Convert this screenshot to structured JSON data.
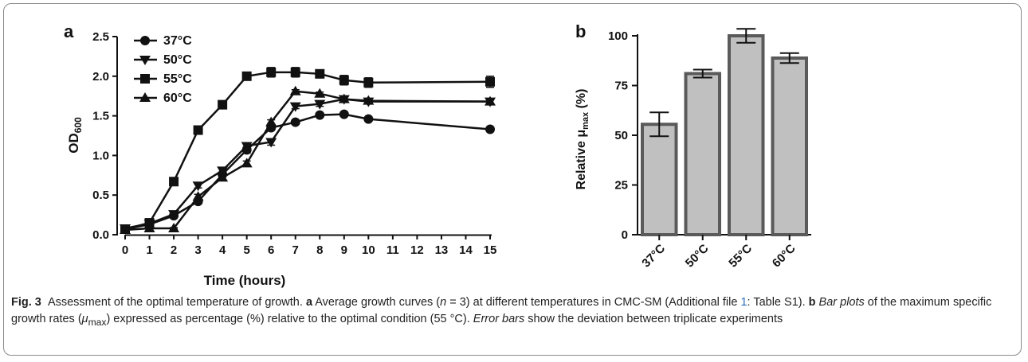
{
  "chart_data": [
    {
      "type": "line",
      "panel_label": "a",
      "xlabel": "Time (hours)",
      "ylabel": "OD600",
      "ylabel_main": "OD",
      "ylabel_sub": "600",
      "xlim": [
        0,
        15
      ],
      "ylim": [
        0,
        2.5
      ],
      "x_ticks": [
        0,
        1,
        2,
        3,
        4,
        5,
        6,
        7,
        8,
        9,
        10,
        11,
        12,
        13,
        14,
        15
      ],
      "y_ticks": [
        "0.0",
        "0.5",
        "1.0",
        "1.5",
        "2.0",
        "2.5"
      ],
      "legend_position": "top-left",
      "series": [
        {
          "name": "37°C",
          "marker": "circle",
          "x": [
            0,
            1,
            2,
            3,
            4,
            5,
            6,
            7,
            8,
            9,
            10,
            15
          ],
          "y": [
            0.07,
            0.13,
            0.24,
            0.42,
            0.76,
            1.07,
            1.35,
            1.42,
            1.51,
            1.52,
            1.46,
            1.33
          ],
          "err": [
            0.01,
            0.01,
            0.02,
            0.03,
            0.03,
            0.04,
            0.03,
            0.02,
            0.02,
            0.02,
            0.02,
            0.02
          ]
        },
        {
          "name": "50°C",
          "marker": "triangle-down",
          "x": [
            0,
            1,
            2,
            3,
            4,
            5,
            6,
            7,
            8,
            9,
            10,
            15
          ],
          "y": [
            0.08,
            0.14,
            0.26,
            0.62,
            0.81,
            1.12,
            1.17,
            1.62,
            1.65,
            1.71,
            1.68,
            1.68
          ],
          "err": [
            0.01,
            0.01,
            0.02,
            0.03,
            0.03,
            0.04,
            0.04,
            0.03,
            0.03,
            0.03,
            0.03,
            0.03
          ]
        },
        {
          "name": "55°C",
          "marker": "square",
          "x": [
            0,
            1,
            2,
            3,
            4,
            5,
            6,
            7,
            8,
            9,
            10,
            15
          ],
          "y": [
            0.07,
            0.15,
            0.67,
            1.32,
            1.64,
            2.0,
            2.05,
            2.05,
            2.03,
            1.95,
            1.92,
            1.93
          ],
          "err": [
            0.01,
            0.02,
            0.03,
            0.03,
            0.05,
            0.03,
            0.06,
            0.06,
            0.05,
            0.06,
            0.06,
            0.07
          ]
        },
        {
          "name": "60°C",
          "marker": "triangle-up",
          "x": [
            0,
            1,
            2,
            3,
            4,
            5,
            6,
            7,
            8,
            9,
            10,
            15
          ],
          "y": [
            0.06,
            0.08,
            0.08,
            0.48,
            0.72,
            0.9,
            1.42,
            1.81,
            1.78,
            1.71,
            1.69,
            1.68
          ],
          "err": [
            0.01,
            0.01,
            0.01,
            0.03,
            0.03,
            0.03,
            0.03,
            0.02,
            0.02,
            0.03,
            0.03,
            0.03
          ]
        }
      ]
    },
    {
      "type": "bar",
      "panel_label": "b",
      "ylabel": "Relative μmax (%)",
      "ylabel_pre": "Relative μ",
      "ylabel_sub": "max",
      "ylabel_post": " (%)",
      "categories": [
        "37°C",
        "50°C",
        "55°C",
        "60°C"
      ],
      "values": [
        55.5,
        81,
        100,
        88.8
      ],
      "errors": [
        6,
        2,
        3.5,
        2.5
      ],
      "ylim": [
        0,
        110
      ],
      "y_ticks": [
        0,
        25,
        50,
        75,
        100
      ],
      "bar_fill": "#c0c0c0",
      "bar_stroke": "#5a5a5a"
    }
  ],
  "caption": {
    "fig_label": "Fig. 3",
    "title": "Assessment of the optimal temperature of growth.",
    "a_label": "a",
    "a_text_1": "Average growth curves (",
    "a_n": "n",
    "a_text_2": " = 3) at different temperatures in CMC-SM (Additional file ",
    "a_link": "1",
    "a_text_3": ": Table S1).",
    "b_label": "b",
    "b_italic": "Bar plots",
    "b_text_1": " of the maximum specific growth rates (",
    "b_mu": "μ",
    "b_mu_sub": "max",
    "b_text_2": ") expressed as percentage (%) relative to the optimal condition (55 °C).",
    "err_italic": "Error bars",
    "err_text": " show the deviation between triplicate experiments"
  }
}
